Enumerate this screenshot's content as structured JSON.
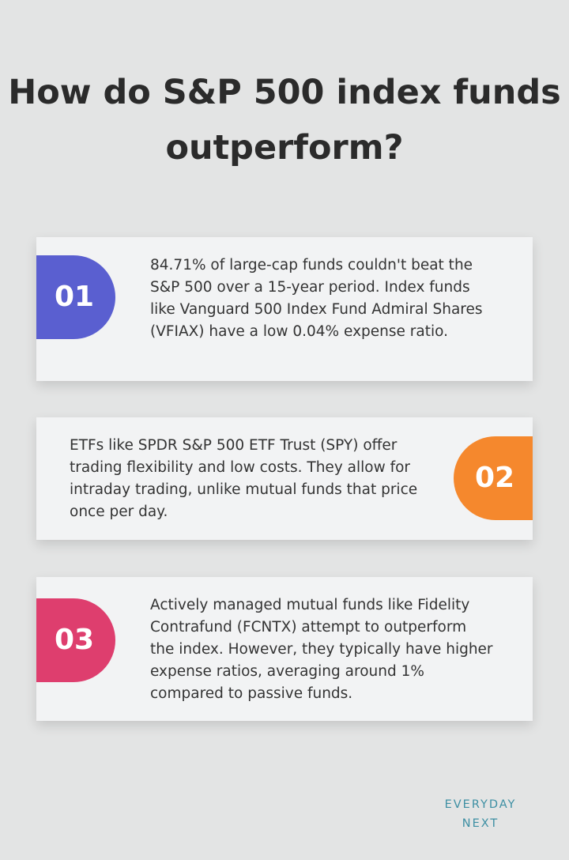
{
  "title": "How do S&P 500 index funds outperform?",
  "cards": [
    {
      "number": "01",
      "color": "#5a5fd0",
      "text": "84.71% of large-cap funds couldn't beat the S&P 500 over a 15-year period. Index funds like Vanguard 500 Index Fund Admiral Shares (VFIAX) have a low 0.04% expense ratio."
    },
    {
      "number": "02",
      "color": "#f5882d",
      "text": "ETFs like SPDR S&P 500 ETF Trust (SPY) offer trading flexibility and low costs. They allow for intraday trading, unlike mutual funds that price once per day."
    },
    {
      "number": "03",
      "color": "#de3e6e",
      "text": "Actively managed mutual funds like Fidelity Contrafund (FCNTX) attempt to outperform the index. However, they typically have higher expense ratios, averaging around 1% compared to passive funds."
    }
  ],
  "brand": {
    "line1": "EVERYDAY",
    "line2": "NEXT",
    "color": "#3d8fa3"
  }
}
